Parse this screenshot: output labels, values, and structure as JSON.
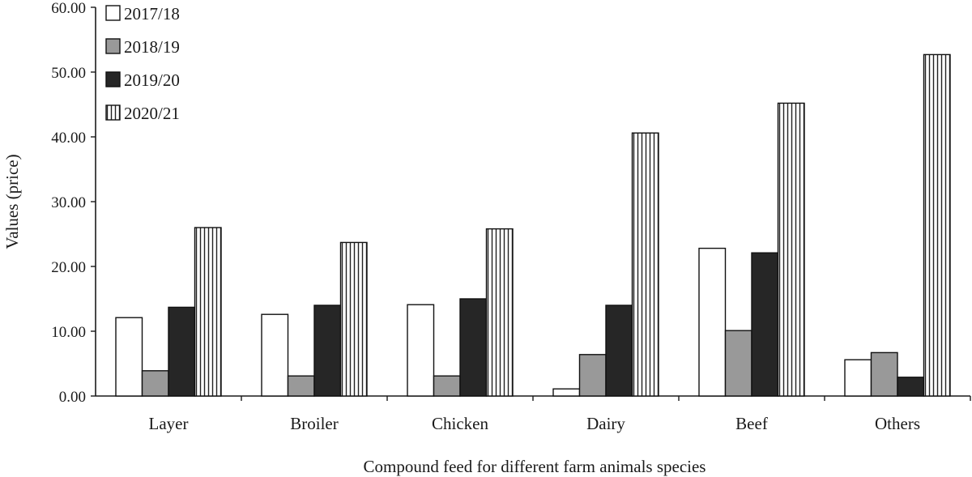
{
  "chart_data": {
    "type": "bar",
    "title": "",
    "xlabel": "Compound feed for different farm animals species",
    "ylabel": "Values (price)",
    "ylim": [
      0,
      60
    ],
    "yticks": [
      "0.00",
      "10.00",
      "20.00",
      "30.00",
      "40.00",
      "50.00",
      "60.00"
    ],
    "grid": false,
    "legend_position": "top-left",
    "categories": [
      "Layer",
      "Broiler",
      "Chicken",
      "Dairy",
      "Beef",
      "Others"
    ],
    "series": [
      {
        "name": "2017/18",
        "fill": "#ffffff",
        "pattern": "solid",
        "values": [
          12.1,
          12.6,
          14.1,
          1.1,
          22.8,
          5.6
        ]
      },
      {
        "name": "2018/19",
        "fill": "#999999",
        "pattern": "solid",
        "values": [
          3.9,
          3.1,
          3.1,
          6.4,
          10.1,
          6.7
        ]
      },
      {
        "name": "2019/20",
        "fill": "#262626",
        "pattern": "solid",
        "values": [
          13.7,
          14.0,
          15.0,
          14.0,
          22.1,
          2.9
        ]
      },
      {
        "name": "2020/21",
        "fill": "#ffffff",
        "pattern": "vertical-stripes",
        "values": [
          26.0,
          23.7,
          25.8,
          40.6,
          45.2,
          52.7
        ]
      }
    ]
  }
}
